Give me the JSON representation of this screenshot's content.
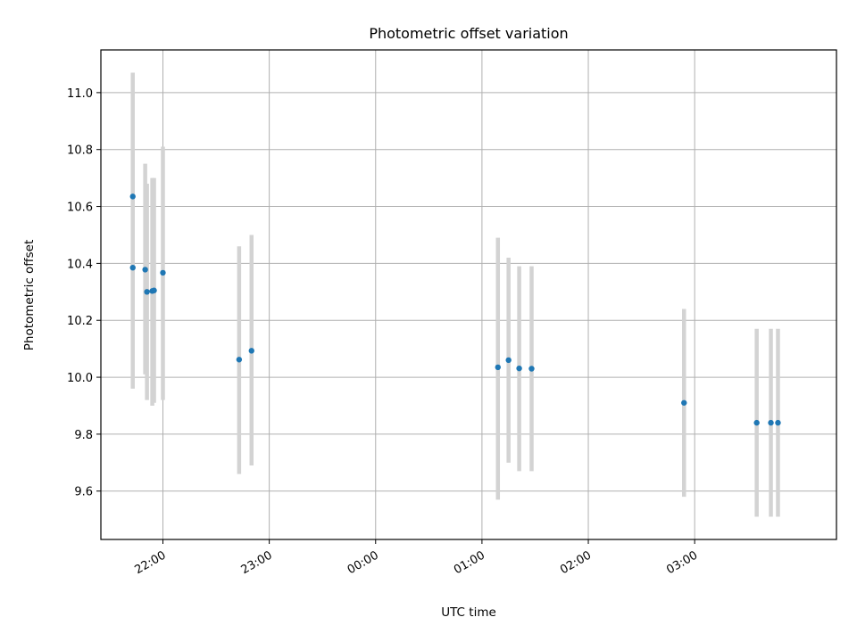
{
  "chart_data": {
    "type": "scatter",
    "title": "Photometric offset variation",
    "xlabel": "UTC time",
    "ylabel": "Photometric offset",
    "x_axis": "time",
    "xlim": [
      "21:25",
      "28:20"
    ],
    "ylim": [
      9.43,
      11.15
    ],
    "xticks": [
      {
        "label": "22:00",
        "t": "22:00"
      },
      {
        "label": "23:00",
        "t": "23:00"
      },
      {
        "label": "00:00",
        "t": "24:00"
      },
      {
        "label": "01:00",
        "t": "25:00"
      },
      {
        "label": "02:00",
        "t": "26:00"
      },
      {
        "label": "03:00",
        "t": "27:00"
      }
    ],
    "yticks": [
      9.6,
      9.8,
      10.0,
      10.2,
      10.4,
      10.6,
      10.8,
      11.0
    ],
    "ytick_labels": [
      "9.6",
      "9.8",
      "10.0",
      "10.2",
      "10.4",
      "10.6",
      "10.8",
      "11.0"
    ],
    "grid": true,
    "colors": {
      "point": "#1f77b4",
      "errorbar": "#d3d3d3",
      "grid": "#b0b0b0"
    },
    "points": [
      {
        "t": "21:43",
        "y": 10.635,
        "lo": 10.2,
        "hi": 11.07
      },
      {
        "t": "21:43",
        "y": 10.385,
        "lo": 9.96,
        "hi": 10.8
      },
      {
        "t": "21:50",
        "y": 10.378,
        "lo": 10.01,
        "hi": 10.75
      },
      {
        "t": "21:51",
        "y": 10.3,
        "lo": 9.92,
        "hi": 10.68
      },
      {
        "t": "21:54",
        "y": 10.303,
        "lo": 9.9,
        "hi": 10.7
      },
      {
        "t": "21:55",
        "y": 10.305,
        "lo": 9.91,
        "hi": 10.7
      },
      {
        "t": "22:00",
        "y": 10.367,
        "lo": 9.92,
        "hi": 10.81
      },
      {
        "t": "22:43",
        "y": 10.062,
        "lo": 9.66,
        "hi": 10.46
      },
      {
        "t": "22:50",
        "y": 10.093,
        "lo": 9.69,
        "hi": 10.5
      },
      {
        "t": "25:09",
        "y": 10.035,
        "lo": 9.57,
        "hi": 10.49
      },
      {
        "t": "25:15",
        "y": 10.06,
        "lo": 9.7,
        "hi": 10.42
      },
      {
        "t": "25:21",
        "y": 10.031,
        "lo": 9.67,
        "hi": 10.39
      },
      {
        "t": "25:28",
        "y": 10.03,
        "lo": 9.67,
        "hi": 10.39
      },
      {
        "t": "26:54",
        "y": 9.91,
        "lo": 9.58,
        "hi": 10.24
      },
      {
        "t": "27:35",
        "y": 9.84,
        "lo": 9.51,
        "hi": 10.17
      },
      {
        "t": "27:43",
        "y": 9.84,
        "lo": 9.51,
        "hi": 10.17
      },
      {
        "t": "27:47",
        "y": 9.84,
        "lo": 9.51,
        "hi": 10.17
      }
    ]
  }
}
